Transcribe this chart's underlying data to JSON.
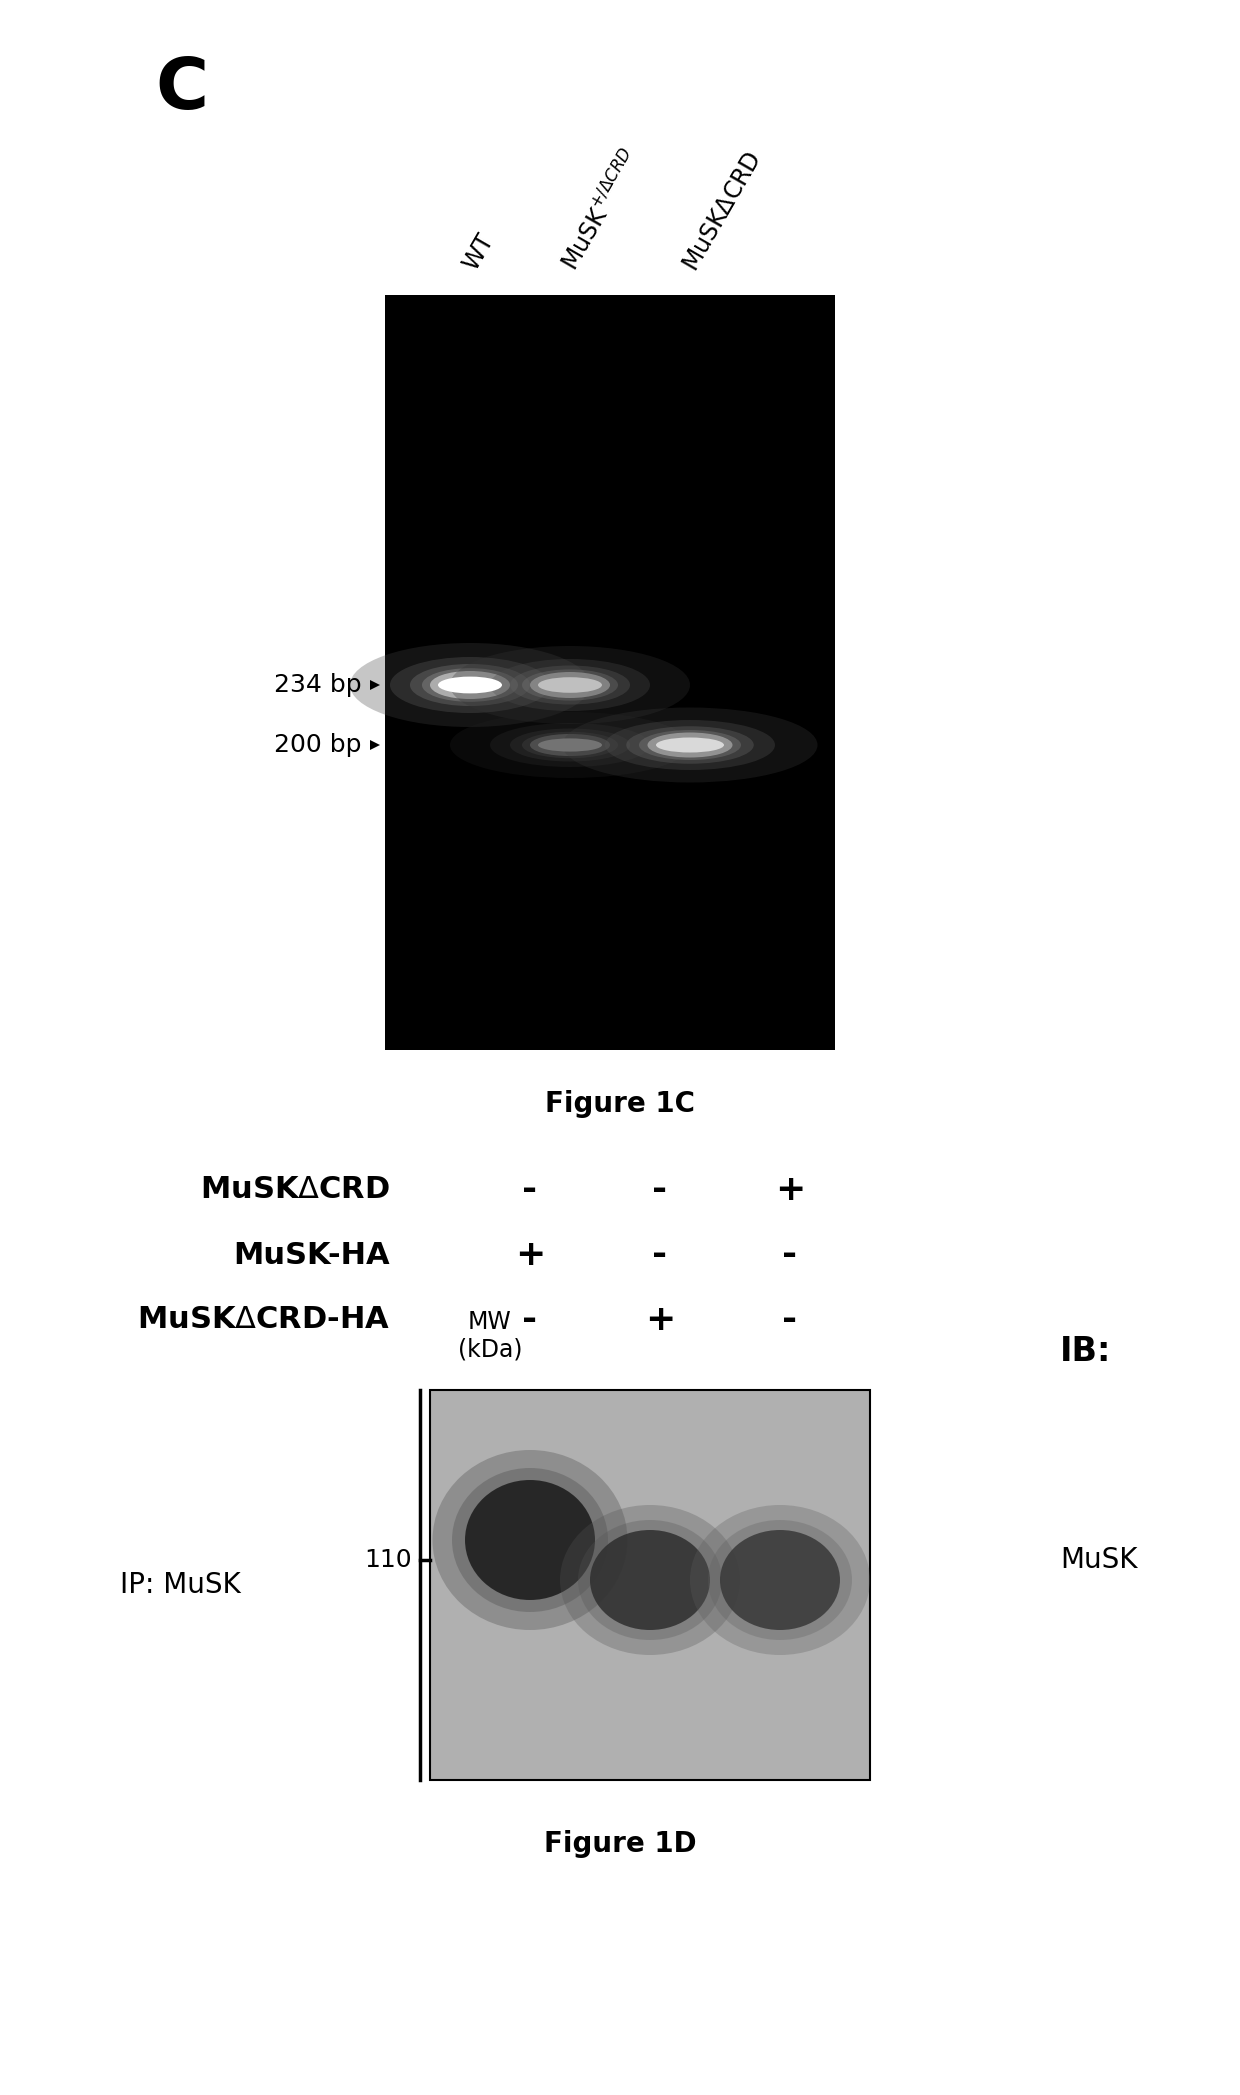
{
  "panel_C_label": "C",
  "band_234_label": "234 bp",
  "band_200_label": "200 bp",
  "figure_1C_caption": "Figure 1C",
  "figure_1D_caption": "Figure 1D",
  "row_labels": [
    "MuSKΔCRD",
    "MuSK-HA",
    "MuSKΔCRD-HA"
  ],
  "row_signs": [
    [
      "-",
      "-",
      "+"
    ],
    [
      "+",
      "-",
      "-"
    ],
    [
      "-",
      "+",
      "-"
    ]
  ],
  "ip_label": "IP: MuSK",
  "mw_label": "MW\n(kDa)",
  "mw_value": "110",
  "ib_label": "IB:",
  "ib_value": "MuSK",
  "bg_color": "#ffffff"
}
